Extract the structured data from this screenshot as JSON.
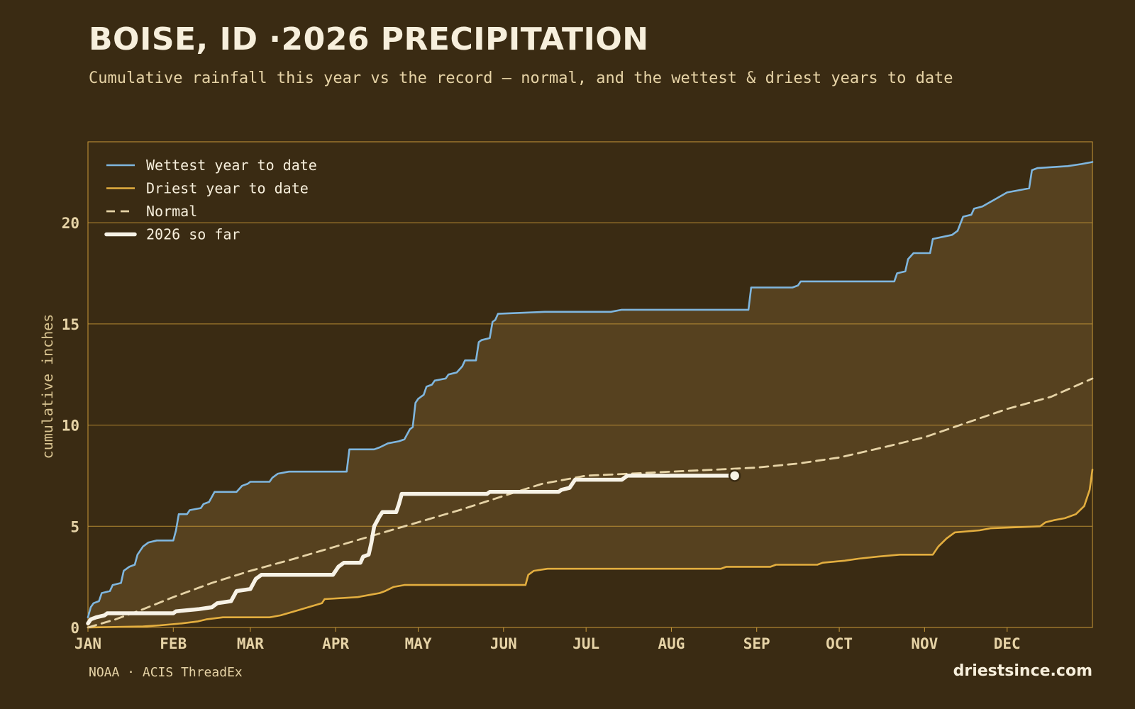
{
  "header": {
    "title": "BOISE, ID ·2026 PRECIPITATION",
    "subtitle": "Cumulative rainfall this year vs the record — normal, and the wettest & driest years to date"
  },
  "footer": {
    "source": "NOAA · ACIS ThreadEx",
    "brand": "driestsince.com"
  },
  "colors": {
    "background": "#3a2b13",
    "band": "#56411f",
    "grid": "#c99a3a",
    "wettest": "#7fb6de",
    "driest": "#e3ae3f",
    "normal": "#e6d3a6",
    "current": "#f7f2e6"
  },
  "chart_data": {
    "type": "line",
    "ylabel": "cumulative inches",
    "ylim": [
      0,
      24
    ],
    "yticks": [
      0,
      5,
      10,
      15,
      20
    ],
    "xlim": [
      0,
      365
    ],
    "xticks": [
      {
        "label": "JAN",
        "day": 0
      },
      {
        "label": "FEB",
        "day": 31
      },
      {
        "label": "MAR",
        "day": 59
      },
      {
        "label": "APR",
        "day": 90
      },
      {
        "label": "MAY",
        "day": 120
      },
      {
        "label": "JUN",
        "day": 151
      },
      {
        "label": "JUL",
        "day": 181
      },
      {
        "label": "AUG",
        "day": 212
      },
      {
        "label": "SEP",
        "day": 243
      },
      {
        "label": "OCT",
        "day": 273
      },
      {
        "label": "NOV",
        "day": 304
      },
      {
        "label": "DEC",
        "day": 334
      }
    ],
    "grid": true,
    "legend_position": "top-left",
    "series": [
      {
        "name": "Wettest year to date",
        "key": "wettest",
        "style": "solid",
        "points": [
          [
            0,
            0.5
          ],
          [
            1,
            1.0
          ],
          [
            2,
            1.2
          ],
          [
            4,
            1.3
          ],
          [
            5,
            1.7
          ],
          [
            8,
            1.8
          ],
          [
            9,
            2.1
          ],
          [
            12,
            2.2
          ],
          [
            13,
            2.8
          ],
          [
            15,
            3.0
          ],
          [
            17,
            3.1
          ],
          [
            18,
            3.6
          ],
          [
            20,
            4.0
          ],
          [
            22,
            4.2
          ],
          [
            25,
            4.3
          ],
          [
            31,
            4.3
          ],
          [
            32,
            4.8
          ],
          [
            33,
            5.6
          ],
          [
            36,
            5.6
          ],
          [
            37,
            5.8
          ],
          [
            41,
            5.9
          ],
          [
            42,
            6.1
          ],
          [
            44,
            6.2
          ],
          [
            46,
            6.7
          ],
          [
            54,
            6.7
          ],
          [
            56,
            7.0
          ],
          [
            58,
            7.1
          ],
          [
            59,
            7.2
          ],
          [
            66,
            7.2
          ],
          [
            67,
            7.4
          ],
          [
            69,
            7.6
          ],
          [
            73,
            7.7
          ],
          [
            86,
            7.7
          ],
          [
            94,
            7.7
          ],
          [
            95,
            8.8
          ],
          [
            104,
            8.8
          ],
          [
            106,
            8.9
          ],
          [
            109,
            9.1
          ],
          [
            113,
            9.2
          ],
          [
            115,
            9.3
          ],
          [
            117,
            9.8
          ],
          [
            118,
            9.9
          ],
          [
            119,
            11.1
          ],
          [
            120,
            11.3
          ],
          [
            122,
            11.5
          ],
          [
            123,
            11.9
          ],
          [
            125,
            12.0
          ],
          [
            126,
            12.2
          ],
          [
            130,
            12.3
          ],
          [
            131,
            12.5
          ],
          [
            134,
            12.6
          ],
          [
            136,
            12.9
          ],
          [
            137,
            13.2
          ],
          [
            141,
            13.2
          ],
          [
            142,
            14.1
          ],
          [
            143,
            14.2
          ],
          [
            146,
            14.3
          ],
          [
            147,
            15.1
          ],
          [
            148,
            15.2
          ],
          [
            149,
            15.5
          ],
          [
            166,
            15.6
          ],
          [
            190,
            15.6
          ],
          [
            194,
            15.7
          ],
          [
            240,
            15.7
          ],
          [
            241,
            16.8
          ],
          [
            256,
            16.8
          ],
          [
            258,
            16.9
          ],
          [
            259,
            17.1
          ],
          [
            293,
            17.1
          ],
          [
            294,
            17.5
          ],
          [
            297,
            17.6
          ],
          [
            298,
            18.2
          ],
          [
            300,
            18.5
          ],
          [
            306,
            18.5
          ],
          [
            307,
            19.2
          ],
          [
            314,
            19.4
          ],
          [
            316,
            19.6
          ],
          [
            318,
            20.3
          ],
          [
            321,
            20.4
          ],
          [
            322,
            20.7
          ],
          [
            325,
            20.8
          ],
          [
            334,
            21.5
          ],
          [
            338,
            21.6
          ],
          [
            342,
            21.7
          ],
          [
            343,
            22.6
          ],
          [
            345,
            22.7
          ],
          [
            356,
            22.8
          ],
          [
            361,
            22.9
          ],
          [
            365,
            23.0
          ]
        ]
      },
      {
        "name": "Driest year to date",
        "key": "driest",
        "style": "solid",
        "points": [
          [
            0,
            0
          ],
          [
            20,
            0.05
          ],
          [
            26,
            0.1
          ],
          [
            34,
            0.2
          ],
          [
            40,
            0.3
          ],
          [
            43,
            0.4
          ],
          [
            49,
            0.5
          ],
          [
            66,
            0.5
          ],
          [
            70,
            0.6
          ],
          [
            75,
            0.8
          ],
          [
            80,
            1.0
          ],
          [
            85,
            1.2
          ],
          [
            86,
            1.4
          ],
          [
            98,
            1.5
          ],
          [
            102,
            1.6
          ],
          [
            106,
            1.7
          ],
          [
            108,
            1.8
          ],
          [
            111,
            2.0
          ],
          [
            115,
            2.1
          ],
          [
            159,
            2.1
          ],
          [
            160,
            2.6
          ],
          [
            162,
            2.8
          ],
          [
            167,
            2.9
          ],
          [
            230,
            2.9
          ],
          [
            232,
            3.0
          ],
          [
            248,
            3.0
          ],
          [
            250,
            3.1
          ],
          [
            265,
            3.1
          ],
          [
            267,
            3.2
          ],
          [
            275,
            3.3
          ],
          [
            280,
            3.4
          ],
          [
            287,
            3.5
          ],
          [
            295,
            3.6
          ],
          [
            307,
            3.6
          ],
          [
            309,
            4.0
          ],
          [
            312,
            4.4
          ],
          [
            315,
            4.7
          ],
          [
            324,
            4.8
          ],
          [
            328,
            4.9
          ],
          [
            346,
            5.0
          ],
          [
            348,
            5.2
          ],
          [
            351,
            5.3
          ],
          [
            355,
            5.4
          ],
          [
            359,
            5.6
          ],
          [
            362,
            6.0
          ],
          [
            364,
            6.8
          ],
          [
            365,
            7.8
          ]
        ]
      },
      {
        "name": "Normal",
        "key": "normal",
        "style": "dashed",
        "points": [
          [
            0,
            0
          ],
          [
            10,
            0.4
          ],
          [
            20,
            0.9
          ],
          [
            31,
            1.5
          ],
          [
            45,
            2.2
          ],
          [
            59,
            2.8
          ],
          [
            75,
            3.4
          ],
          [
            90,
            4.0
          ],
          [
            105,
            4.6
          ],
          [
            120,
            5.2
          ],
          [
            135,
            5.8
          ],
          [
            151,
            6.5
          ],
          [
            165,
            7.1
          ],
          [
            181,
            7.5
          ],
          [
            197,
            7.6
          ],
          [
            212,
            7.7
          ],
          [
            228,
            7.8
          ],
          [
            243,
            7.9
          ],
          [
            258,
            8.1
          ],
          [
            273,
            8.4
          ],
          [
            289,
            8.9
          ],
          [
            304,
            9.4
          ],
          [
            319,
            10.1
          ],
          [
            334,
            10.8
          ],
          [
            350,
            11.4
          ],
          [
            365,
            12.3
          ]
        ]
      },
      {
        "name": "2026 so far",
        "key": "current",
        "style": "bold",
        "points": [
          [
            0,
            0.2
          ],
          [
            1,
            0.4
          ],
          [
            3,
            0.5
          ],
          [
            6,
            0.6
          ],
          [
            7,
            0.7
          ],
          [
            31,
            0.7
          ],
          [
            32,
            0.8
          ],
          [
            40,
            0.9
          ],
          [
            45,
            1.0
          ],
          [
            47,
            1.2
          ],
          [
            52,
            1.3
          ],
          [
            54,
            1.8
          ],
          [
            59,
            1.9
          ],
          [
            61,
            2.4
          ],
          [
            63,
            2.6
          ],
          [
            89,
            2.6
          ],
          [
            91,
            3.0
          ],
          [
            93,
            3.2
          ],
          [
            99,
            3.2
          ],
          [
            100,
            3.5
          ],
          [
            102,
            3.6
          ],
          [
            103,
            4.2
          ],
          [
            104,
            5.0
          ],
          [
            106,
            5.5
          ],
          [
            107,
            5.7
          ],
          [
            112,
            5.7
          ],
          [
            113,
            6.1
          ],
          [
            114,
            6.6
          ],
          [
            145,
            6.6
          ],
          [
            146,
            6.7
          ],
          [
            171,
            6.7
          ],
          [
            172,
            6.8
          ],
          [
            175,
            6.9
          ],
          [
            177,
            7.3
          ],
          [
            194,
            7.3
          ],
          [
            196,
            7.5
          ],
          [
            235,
            7.5
          ]
        ]
      }
    ]
  }
}
